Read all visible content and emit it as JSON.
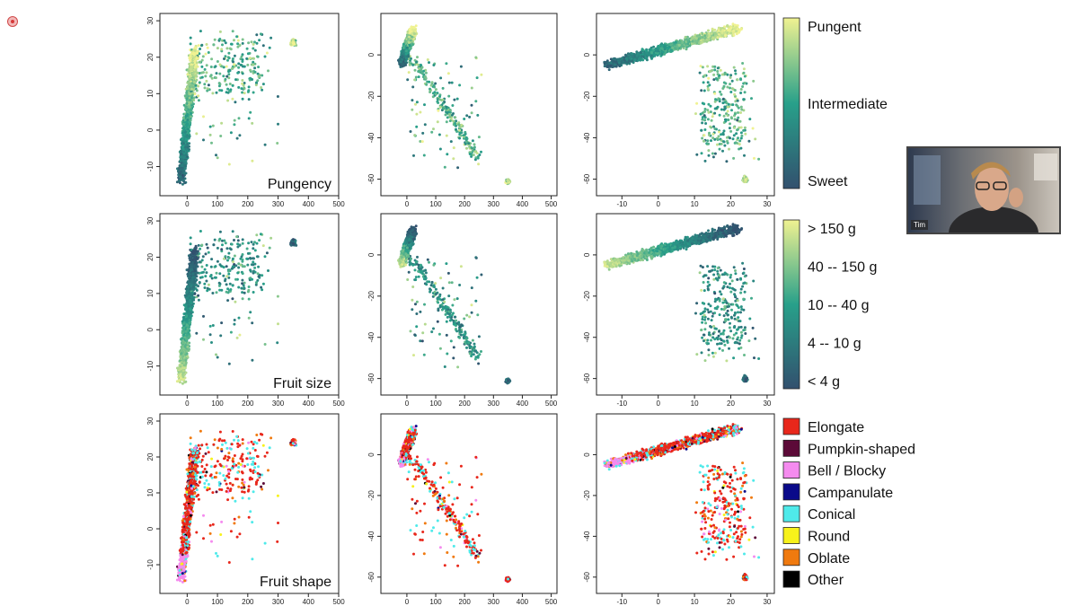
{
  "chart_data": {
    "type": "scatter",
    "title": "",
    "layout": "3x3 grid of scatter panels; rows share a color encoding, columns share axes",
    "columns": [
      {
        "x_ticks": [
          "0",
          "100",
          "200",
          "300",
          "400",
          "500"
        ],
        "xlim": [
          -90,
          500
        ],
        "y_ticks": [
          "30",
          "20",
          "10",
          "0",
          "-10"
        ],
        "ylim": [
          -18,
          32
        ]
      },
      {
        "x_ticks": [
          "0",
          "100",
          "200",
          "300",
          "400",
          "500"
        ],
        "xlim": [
          -90,
          520
        ],
        "y_ticks": [
          "0",
          "-20",
          "-40",
          "-60"
        ],
        "ylim": [
          -68,
          20
        ]
      },
      {
        "x_ticks": [
          "-10",
          "0",
          "10",
          "20",
          "30"
        ],
        "xlim": [
          -17,
          32
        ],
        "y_ticks": [
          "0",
          "-20",
          "-40",
          "-60"
        ],
        "ylim": [
          -68,
          20
        ]
      }
    ],
    "rows": [
      {
        "label": "Pungency",
        "legend_type": "colorbar",
        "legend_labels": [
          "Pungent",
          "Intermediate",
          "Sweet"
        ],
        "colorbar_colors": [
          "#F0F291",
          "#28A08A",
          "#32506E"
        ]
      },
      {
        "label": "Fruit size",
        "legend_type": "colorbar",
        "legend_labels": [
          "> 150 g",
          "40 -- 150 g",
          "10 -- 40 g",
          "4 -- 10 g",
          "< 4 g"
        ],
        "colorbar_colors": [
          "#F0F291",
          "#28A08A",
          "#32506E"
        ]
      },
      {
        "label": "Fruit shape",
        "legend_type": "categorical",
        "legend_labels": [
          "Elongate",
          "Pumpkin-shaped",
          "Bell / Blocky",
          "Campanulate",
          "Conical",
          "Round",
          "Oblate",
          "Other"
        ],
        "legend_colors": [
          "#E8271B",
          "#5C0A38",
          "#F58BEF",
          "#0A0A8A",
          "#4FEAEA",
          "#F7F21B",
          "#F07A0F",
          "#000000"
        ]
      }
    ]
  },
  "webcam": {
    "name": "Tim"
  }
}
